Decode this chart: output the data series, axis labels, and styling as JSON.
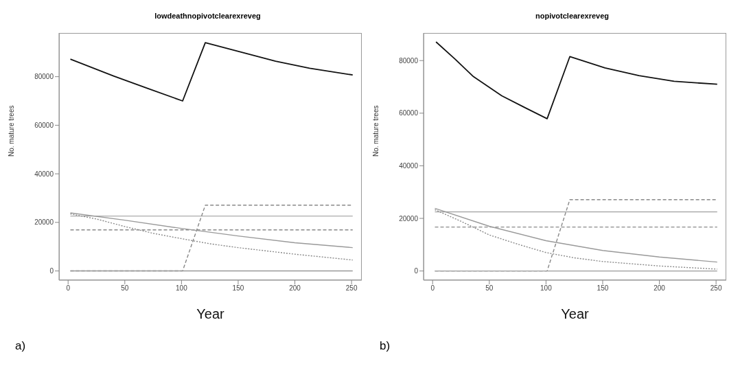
{
  "chart_data": [
    {
      "type": "line",
      "title": "lowdeathnopivotclearexreveg",
      "xlabel": "Year",
      "ylabel": "No. mature trees",
      "annotations": [
        "a)"
      ],
      "xlim": [
        -8,
        259
      ],
      "ylim": [
        -3800,
        98000
      ],
      "xticks": [
        0,
        50,
        100,
        150,
        200,
        250
      ],
      "yticks": [
        0,
        20000,
        40000,
        60000,
        80000
      ],
      "grid": false,
      "legend": false,
      "marker": "none",
      "series": [
        {
          "color": "#111111",
          "line_style": "solid",
          "x": [
            2,
            40,
            70,
            101,
            121,
            152,
            183,
            213,
            251
          ],
          "values": [
            87200,
            80300,
            75200,
            70000,
            94000,
            90200,
            86400,
            83500,
            80700
          ]
        },
        {
          "color": "#aaaaaa",
          "line_style": "solid",
          "x": [
            2,
            251
          ],
          "values": [
            22600,
            22600
          ]
        },
        {
          "color": "#888888",
          "line_style": "dashed",
          "x": [
            2,
            251
          ],
          "values": [
            16900,
            16900
          ]
        },
        {
          "color": "#888888",
          "line_style": "dashed",
          "x": [
            2,
            101,
            121,
            251
          ],
          "values": [
            0,
            0,
            27100,
            27100
          ]
        },
        {
          "color": "#999999",
          "line_style": "solid",
          "x": [
            2,
            50,
            100,
            150,
            200,
            251
          ],
          "values": [
            23900,
            20900,
            17500,
            14400,
            11600,
            9600
          ]
        },
        {
          "color": "#888888",
          "line_style": "dotted",
          "x": [
            2,
            25,
            50,
            75,
            100,
            125,
            150,
            200,
            251
          ],
          "values": [
            23500,
            21400,
            18300,
            15500,
            13300,
            11200,
            9600,
            6900,
            4500
          ]
        },
        {
          "color": "#999999",
          "line_style": "solid",
          "x": [
            2,
            251
          ],
          "values": [
            0,
            0
          ]
        }
      ]
    },
    {
      "type": "line",
      "title": "nopivotclearexreveg",
      "xlabel": "Year",
      "ylabel": "No. mature trees",
      "annotations": [
        "b)"
      ],
      "xlim": [
        -8,
        259
      ],
      "ylim": [
        -3500,
        90500
      ],
      "xticks": [
        0,
        50,
        100,
        150,
        200,
        250
      ],
      "yticks": [
        0,
        20000,
        40000,
        60000,
        80000
      ],
      "grid": false,
      "legend": false,
      "marker": "none",
      "series": [
        {
          "color": "#111111",
          "line_style": "solid",
          "x": [
            3,
            20,
            36,
            61,
            81,
            101,
            121,
            152,
            182,
            213,
            251
          ],
          "values": [
            87100,
            80500,
            73900,
            66600,
            62200,
            57900,
            81500,
            77200,
            74300,
            72100,
            71000
          ]
        },
        {
          "color": "#aaaaaa",
          "line_style": "solid",
          "x": [
            2,
            251
          ],
          "values": [
            22500,
            22500
          ]
        },
        {
          "color": "#888888",
          "line_style": "dashed",
          "x": [
            2,
            251
          ],
          "values": [
            16700,
            16700
          ]
        },
        {
          "color": "#888888",
          "line_style": "dashed",
          "x": [
            2,
            101,
            121,
            251
          ],
          "values": [
            0,
            0,
            27100,
            27100
          ]
        },
        {
          "color": "#999999",
          "line_style": "solid",
          "x": [
            2,
            50,
            100,
            150,
            200,
            251
          ],
          "values": [
            23800,
            17000,
            11500,
            7800,
            5300,
            3400
          ]
        },
        {
          "color": "#888888",
          "line_style": "dotted",
          "x": [
            2,
            25,
            50,
            75,
            100,
            125,
            150,
            200,
            251
          ],
          "values": [
            23300,
            18900,
            13700,
            10200,
            7000,
            5000,
            3600,
            1900,
            700
          ]
        },
        {
          "color": "#999999",
          "line_style": "solid",
          "x": [
            2,
            251
          ],
          "values": [
            0,
            0
          ]
        }
      ]
    }
  ]
}
